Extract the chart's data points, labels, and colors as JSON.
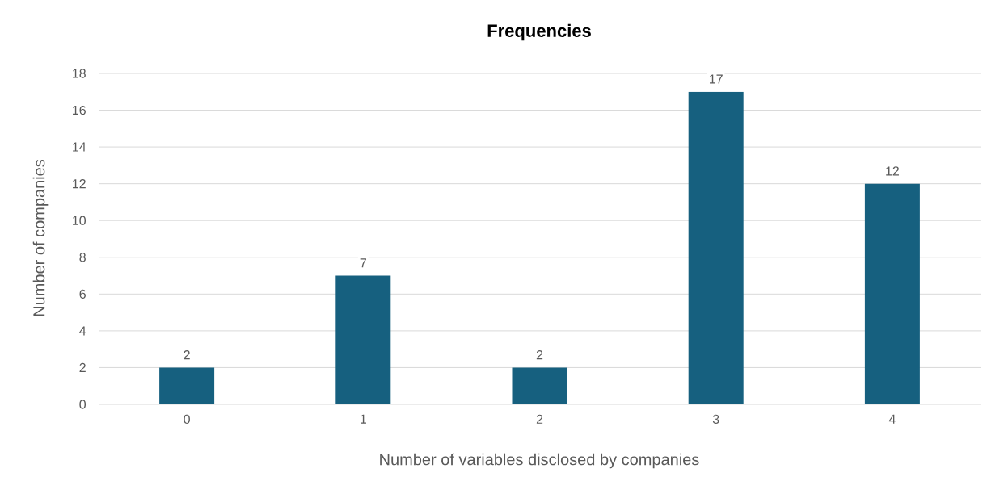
{
  "chart_data": {
    "type": "bar",
    "title": "Frequencies",
    "xlabel": "Number of variables disclosed by companies",
    "ylabel": "Number of companies",
    "categories": [
      "0",
      "1",
      "2",
      "3",
      "4"
    ],
    "values": [
      2,
      7,
      2,
      17,
      12
    ],
    "color": "#16607f",
    "ylim": [
      0,
      18
    ],
    "yticks": [
      0,
      2,
      4,
      6,
      8,
      10,
      12,
      14,
      16,
      18
    ],
    "grid": "y",
    "data_labels": true
  }
}
